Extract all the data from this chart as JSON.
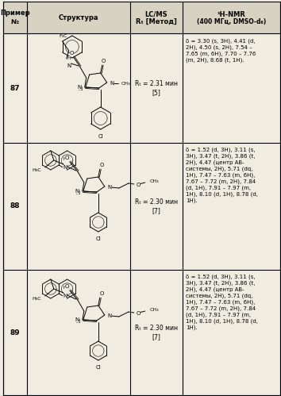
{
  "title_col1": "Пример\n№",
  "title_col2": "Структура",
  "title_col3": "LC/MS\nRₜ [Метод]",
  "title_col4": "¹H-NMR\n(400 МГц, DMSO-d₆)",
  "rows": [
    {
      "num": "87",
      "lcms": "Rₜ = 2.31 мин\n[5]",
      "nmr": "δ = 3.30 (s, 3H), 4.41 (d,\n2H), 4.50 (s, 2H), 7.54 –\n7.65 (m, 6H), 7.70 – 7.76\n(m, 2H), 8.68 (t, 1H)."
    },
    {
      "num": "88",
      "lcms": "Rₜ = 2.30 мин\n[7]",
      "nmr": "δ = 1.52 (d, 3H), 3.11 (s,\n3H), 3.47 (t, 2H), 3.86 (t,\n2H), 4.47 (центр АВ-\nсистемы, 2H), 5.71 (dq,\n1H), 7.47 – 7.63 (m, 6H),\n7.67 – 7.72 (m, 2H), 7.84\n(d, 1H), 7.91 – 7.97 (m,\n1H), 8.10 (d, 1H), 8.78 (d,\n1H)."
    },
    {
      "num": "89",
      "lcms": "Rₜ = 2.30 мин\n[7]",
      "nmr": "δ = 1.52 (d, 3H), 3.11 (s,\n3H), 3.47 (t, 2H), 3.86 (t,\n2H), 4.47 (центр АВ-\nсистемы, 2H), 5.71 (dq,\n1H), 7.47 – 7.63 (m, 6H),\n7.67 – 7.72 (m, 2H), 7.84\n(d, 1H), 7.91 – 7.97 (m,\n1H), 8.10 (d, 1H), 8.78 (d,\n1H)."
    }
  ],
  "bg_color": "#f0ece0",
  "header_bg": "#d8d3c0",
  "border_color": "#000000",
  "fig_width": 3.53,
  "fig_height": 4.99,
  "dpi": 100
}
